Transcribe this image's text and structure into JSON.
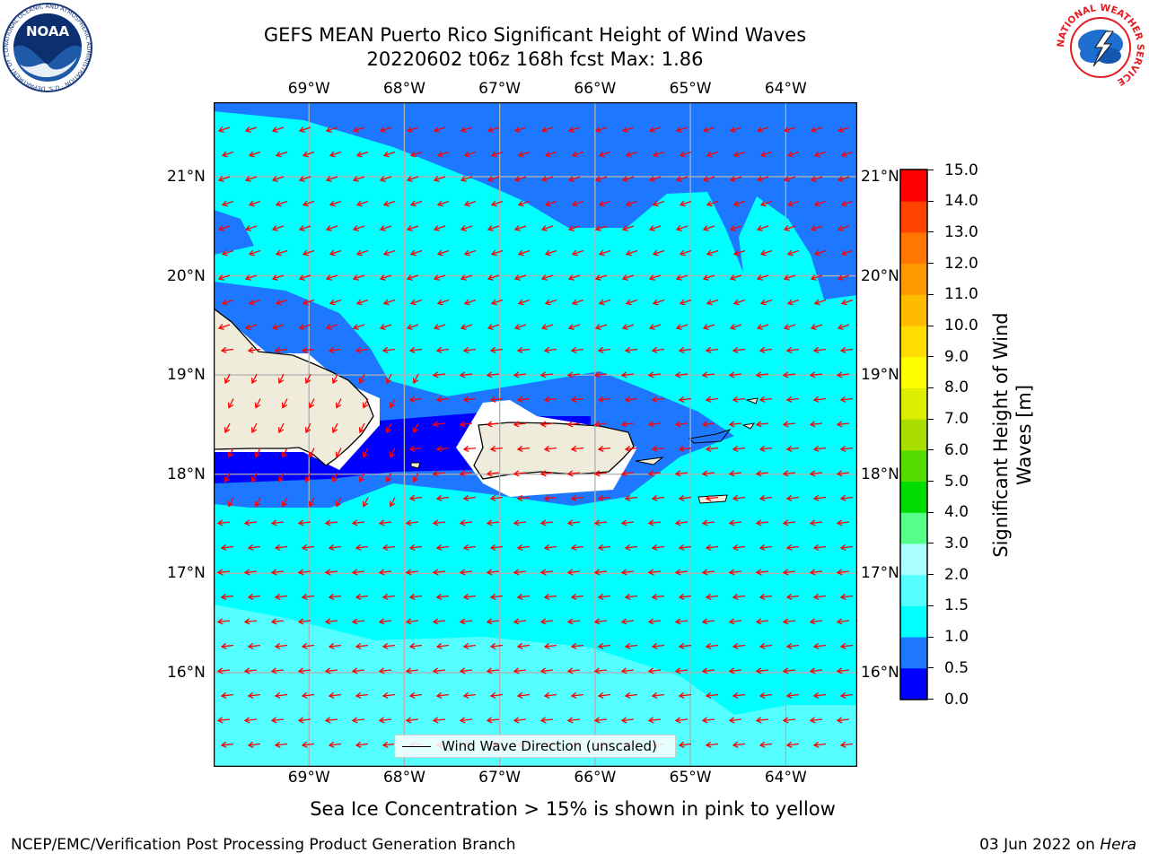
{
  "title": {
    "line1": "GEFS MEAN Puerto Rico Significant Height of Wind Waves",
    "line2": "20220602 t06z 168h fcst   Max: 1.86"
  },
  "map": {
    "lon_labels": [
      "69°W",
      "68°W",
      "67°W",
      "66°W",
      "65°W",
      "64°W"
    ],
    "lat_labels": [
      "21°N",
      "20°N",
      "19°N",
      "18°N",
      "17°N",
      "16°N"
    ],
    "lon_ticks": [
      -69,
      -68,
      -67,
      -66,
      -65,
      -64
    ],
    "lat_ticks": [
      21,
      20,
      19,
      18,
      17,
      16
    ],
    "extent": {
      "lon_min": -70,
      "lon_max": -63.25,
      "lat_min": 15.05,
      "lat_max": 21.75
    },
    "legend_label": "Wind Wave Direction (unscaled)",
    "arrow_color": "#ff0000",
    "land_color": "#efecdc"
  },
  "colorbar": {
    "label": "Significant Height of Wind Waves [m]",
    "bounds": [
      0.0,
      0.5,
      1.0,
      1.5,
      2.0,
      3.0,
      4.0,
      5.0,
      6.0,
      7.0,
      8.0,
      9.0,
      10.0,
      11.0,
      12.0,
      13.0,
      14.0,
      15.0
    ],
    "tick_labels": [
      "0.0",
      "0.5",
      "1.0",
      "1.5",
      "2.0",
      "3.0",
      "4.0",
      "5.0",
      "6.0",
      "7.0",
      "8.0",
      "9.0",
      "10.0",
      "11.0",
      "12.0",
      "13.0",
      "14.0",
      "15.0"
    ],
    "colors": [
      "#0000ff",
      "#1e78ff",
      "#00ffff",
      "#55ffff",
      "#aaffff",
      "#55ff88",
      "#00dd00",
      "#55dd00",
      "#aadd00",
      "#ddee00",
      "#ffff00",
      "#ffdd00",
      "#ffbb00",
      "#ff9900",
      "#ff7700",
      "#ff4400",
      "#ff0000"
    ]
  },
  "caption": "Sea Ice Concentration > 15% is shown in pink to yellow",
  "footer": {
    "left": "NCEP/EMC/Verification Post Processing Product Generation Branch",
    "date": "03 Jun 2022 on",
    "host": "Hera"
  },
  "logos": {
    "noaa": "NOAA",
    "noaa_ring": "NATIONAL OCEANIC AND ATMOSPHERIC ADMINISTRATION · U.S. DEPARTMENT OF COMMERCE",
    "nws_ring": "NATIONAL WEATHER SERVICE"
  }
}
